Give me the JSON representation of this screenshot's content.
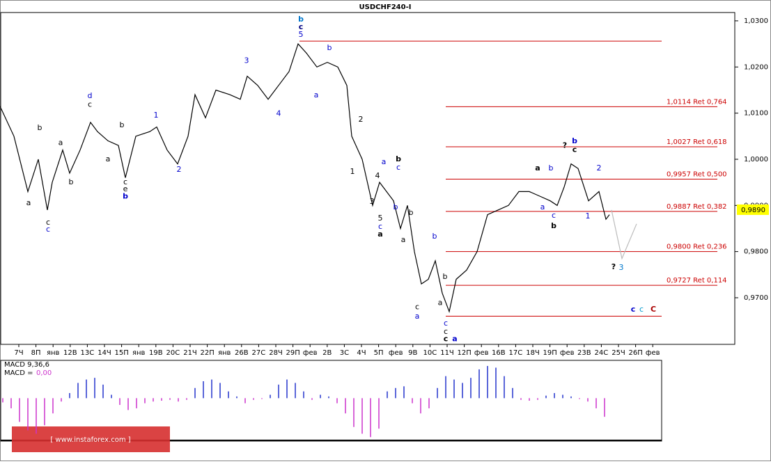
{
  "chart_data": {
    "type": "line",
    "title": "USDCHF240-I",
    "categories": [
      "7Ч",
      "8П",
      "янв",
      "12В",
      "13С",
      "14Ч",
      "15П",
      "янв",
      "19В",
      "20С",
      "21Ч",
      "22П",
      "янв",
      "26В",
      "27С",
      "28Ч",
      "29П",
      "фев",
      "2В",
      "3С",
      "4Ч",
      "5П",
      "фев",
      "9В",
      "10С",
      "11Ч",
      "12П",
      "фев",
      "16В",
      "17С",
      "18Ч",
      "19П",
      "фев",
      "23В",
      "24С",
      "25Ч",
      "26П",
      "фев"
    ],
    "xlim": [
      0,
      237.5
    ],
    "ylim": [
      0.9599,
      1.0318
    ],
    "yticks": [
      {
        "value": 1.03,
        "label": "1,0300"
      },
      {
        "value": 1.02,
        "label": "1,0200"
      },
      {
        "value": 1.01,
        "label": "1,0100"
      },
      {
        "value": 1.0,
        "label": "1,0000"
      },
      {
        "value": 0.99,
        "label": "0,9900"
      },
      {
        "value": 0.98,
        "label": "0,9800"
      },
      {
        "value": 0.97,
        "label": "0,9700"
      }
    ],
    "series": [
      {
        "color": "#000000",
        "x": [
          0,
          5,
          10,
          13.75,
          17,
          18.75,
          22.5,
          25,
          28.75,
          32.5,
          35,
          38.75,
          42.5,
          45,
          48.75,
          53.75,
          56.25,
          60,
          63.75,
          67.5,
          70,
          73.75,
          77.5,
          82.5,
          86.25,
          88.75,
          92.5,
          96.25,
          100,
          103.75,
          107,
          110,
          113.75,
          117.5,
          121.25,
          124.5,
          126.25,
          130,
          133.75,
          136.25,
          138.75,
          141.25,
          143.75,
          146.25,
          148.75,
          151.25,
          153.75,
          156.25,
          158.75,
          161.25,
          163.75,
          167.5,
          171.25,
          175,
          178.75,
          182.5,
          186.25,
          190,
          193.75,
          197.5,
          200,
          202.5,
          205,
          207.5,
          211.25,
          215,
          217.5,
          218.75
        ],
        "values": [
          1.0115,
          1.005,
          0.993,
          1.0,
          0.989,
          0.995,
          1.002,
          0.997,
          1.002,
          1.008,
          1.006,
          1.004,
          1.003,
          0.996,
          1.005,
          1.006,
          1.007,
          1.002,
          0.999,
          1.005,
          1.014,
          1.009,
          1.015,
          1.014,
          1.013,
          1.018,
          1.016,
          1.013,
          1.016,
          1.019,
          1.025,
          1.023,
          1.02,
          1.021,
          1.02,
          1.016,
          1.005,
          1.0,
          0.99,
          0.995,
          0.993,
          0.991,
          0.985,
          0.99,
          0.98,
          0.973,
          0.974,
          0.978,
          0.971,
          0.967,
          0.974,
          0.976,
          0.98,
          0.988,
          0.989,
          0.99,
          0.993,
          0.993,
          0.992,
          0.991,
          0.99,
          0.994,
          0.999,
          0.998,
          0.991,
          0.993,
          0.987,
          0.988
        ]
      },
      {
        "color": "#bbbbbb",
        "x": [
          219.5,
          223.25,
          228.5
        ],
        "values": [
          0.989,
          0.9785,
          0.986
        ]
      }
    ],
    "current_price": {
      "value": 0.989,
      "label": "0,9890"
    },
    "hlines": [
      {
        "value": 1.0256,
        "start": 107.5
      },
      {
        "value": 1.0114,
        "start": 160,
        "label": "1,0114 Ret 0,764"
      },
      {
        "value": 1.0027,
        "start": 160,
        "label": "1,0027 Ret 0,618"
      },
      {
        "value": 0.9957,
        "start": 160,
        "label": "0,9957 Ret 0,500"
      },
      {
        "value": 0.9887,
        "start": 160,
        "label": "0,9887 Ret 0,382"
      },
      {
        "value": 0.98,
        "start": 160,
        "label": "0,9800 Ret 0,236"
      },
      {
        "value": 0.9727,
        "start": 160,
        "label": "0,9727 Ret 0,114"
      },
      {
        "value": 0.966,
        "start": 160
      }
    ],
    "hline_color": "#cc0000",
    "annotations": [
      {
        "text": "b",
        "x": 108,
        "y": 1.0303,
        "color": "#0077cc",
        "bold": true
      },
      {
        "text": "c",
        "x": 108,
        "y": 1.0286,
        "color": "#000080",
        "bold": true
      },
      {
        "text": "5",
        "x": 108,
        "y": 1.027,
        "color": "#0000cc",
        "bold": false
      },
      {
        "text": "b",
        "x": 118.25,
        "y": 1.0241,
        "color": "#0000cc",
        "bold": false
      },
      {
        "text": "a",
        "x": 113.5,
        "y": 1.0139,
        "color": "#0000cc",
        "bold": false
      },
      {
        "text": "3",
        "x": 88.5,
        "y": 1.0213,
        "color": "#0000cc",
        "bold": false
      },
      {
        "text": "4",
        "x": 100,
        "y": 1.0099,
        "color": "#0000cc",
        "bold": false
      },
      {
        "text": "d",
        "x": 32.25,
        "y": 1.0137,
        "color": "#0000cc",
        "bold": false
      },
      {
        "text": "c",
        "x": 32.25,
        "y": 1.0118,
        "color": "#000000",
        "bold": false
      },
      {
        "text": "b",
        "x": 14.25,
        "y": 1.0068,
        "color": "#000000",
        "bold": false
      },
      {
        "text": "a",
        "x": 21.75,
        "y": 1.0035,
        "color": "#000000",
        "bold": false
      },
      {
        "text": "1",
        "x": 56,
        "y": 1.0095,
        "color": "#0000cc",
        "bold": false
      },
      {
        "text": "b",
        "x": 43.75,
        "y": 1.0074,
        "color": "#000000",
        "bold": false
      },
      {
        "text": "a",
        "x": 38.75,
        "y": 1.0,
        "color": "#000000",
        "bold": false
      },
      {
        "text": "c",
        "x": 45,
        "y": 0.995,
        "color": "#000000",
        "bold": false
      },
      {
        "text": "e",
        "x": 45,
        "y": 0.9935,
        "color": "#000000",
        "bold": false
      },
      {
        "text": "b",
        "x": 45,
        "y": 0.9919,
        "color": "#0000cc",
        "bold": true
      },
      {
        "text": "b",
        "x": 25.5,
        "y": 0.995,
        "color": "#000000",
        "bold": false
      },
      {
        "text": "a",
        "x": 10.25,
        "y": 0.9905,
        "color": "#000000",
        "bold": false
      },
      {
        "text": "c",
        "x": 17.25,
        "y": 0.9863,
        "color": "#000000",
        "bold": false
      },
      {
        "text": "c",
        "x": 17.25,
        "y": 0.9848,
        "color": "#0000cc",
        "bold": false
      },
      {
        "text": "2",
        "x": 64.25,
        "y": 0.9977,
        "color": "#0000cc",
        "bold": false
      },
      {
        "text": "2",
        "x": 129.5,
        "y": 1.0086,
        "color": "#000000",
        "bold": false
      },
      {
        "text": "1",
        "x": 126.5,
        "y": 0.9973,
        "color": "#000000",
        "bold": false
      },
      {
        "text": "b",
        "x": 143,
        "y": 1.0,
        "color": "#000000",
        "bold": true
      },
      {
        "text": "c",
        "x": 143,
        "y": 0.9982,
        "color": "#0000cc",
        "bold": false
      },
      {
        "text": "a",
        "x": 137.75,
        "y": 0.9994,
        "color": "#0000cc",
        "bold": false
      },
      {
        "text": "4",
        "x": 135.5,
        "y": 0.9964,
        "color": "#000000",
        "bold": false
      },
      {
        "text": "3",
        "x": 133.5,
        "y": 0.9908,
        "color": "#000000",
        "bold": false
      },
      {
        "text": "5",
        "x": 136.5,
        "y": 0.9872,
        "color": "#000000",
        "bold": false
      },
      {
        "text": "c",
        "x": 136.5,
        "y": 0.9854,
        "color": "#0000cc",
        "bold": false
      },
      {
        "text": "a",
        "x": 136.5,
        "y": 0.9837,
        "color": "#000000",
        "bold": true
      },
      {
        "text": "b",
        "x": 142,
        "y": 0.9896,
        "color": "#0000cc",
        "bold": false
      },
      {
        "text": "b",
        "x": 147.5,
        "y": 0.9884,
        "color": "#000000",
        "bold": false
      },
      {
        "text": "a",
        "x": 144.75,
        "y": 0.9825,
        "color": "#000000",
        "bold": false
      },
      {
        "text": "b",
        "x": 156,
        "y": 0.9833,
        "color": "#0000cc",
        "bold": false
      },
      {
        "text": "c",
        "x": 149.75,
        "y": 0.968,
        "color": "#000000",
        "bold": false
      },
      {
        "text": "a",
        "x": 149.75,
        "y": 0.9659,
        "color": "#0000cc",
        "bold": false
      },
      {
        "text": "b",
        "x": 159.75,
        "y": 0.9745,
        "color": "#000000",
        "bold": false
      },
      {
        "text": "a",
        "x": 158,
        "y": 0.9689,
        "color": "#000000",
        "bold": false
      },
      {
        "text": "c",
        "x": 160,
        "y": 0.9644,
        "color": "#0000cc",
        "bold": false
      },
      {
        "text": "c",
        "x": 160,
        "y": 0.9626,
        "color": "#000000",
        "bold": false
      },
      {
        "text": "c",
        "x": 160,
        "y": 0.961,
        "color": "#000000",
        "bold": true
      },
      {
        "text": "a",
        "x": 163.25,
        "y": 0.961,
        "color": "#0000cc",
        "bold": true
      },
      {
        "text": "a",
        "x": 193,
        "y": 0.998,
        "color": "#000000",
        "bold": true
      },
      {
        "text": "b",
        "x": 197.75,
        "y": 0.998,
        "color": "#0000cc",
        "bold": false
      },
      {
        "text": "a",
        "x": 194.75,
        "y": 0.9896,
        "color": "#0000cc",
        "bold": false
      },
      {
        "text": "c",
        "x": 198.75,
        "y": 0.9878,
        "color": "#0000cc",
        "bold": false
      },
      {
        "text": "b",
        "x": 198.75,
        "y": 0.9855,
        "color": "#000000",
        "bold": true
      },
      {
        "text": "?",
        "x": 202.75,
        "y": 1.0029,
        "color": "#000000",
        "bold": true
      },
      {
        "text": "b",
        "x": 206.25,
        "y": 1.0039,
        "color": "#0000cc",
        "bold": true
      },
      {
        "text": "c",
        "x": 206.25,
        "y": 1.002,
        "color": "#000000",
        "bold": true
      },
      {
        "text": "2",
        "x": 215,
        "y": 0.998,
        "color": "#0000cc",
        "bold": false
      },
      {
        "text": "1",
        "x": 211,
        "y": 0.9876,
        "color": "#0000cc",
        "bold": false
      },
      {
        "text": "?",
        "x": 220.25,
        "y": 0.9766,
        "color": "#000000",
        "bold": true
      },
      {
        "text": "3",
        "x": 223,
        "y": 0.9765,
        "color": "#0077cc",
        "bold": false
      },
      {
        "text": "c",
        "x": 227.25,
        "y": 0.9674,
        "color": "#0000cc",
        "bold": true
      },
      {
        "text": "c",
        "x": 230.25,
        "y": 0.9674,
        "color": "#0099cc",
        "bold": false
      },
      {
        "text": "C",
        "x": 234.5,
        "y": 0.9674,
        "color": "#aa0000",
        "bold": true
      }
    ],
    "macd": {
      "title": "MACD 9,36,6",
      "label": "MACD =",
      "value_label": "0,00",
      "ylim": [
        -0.0049,
        0.0043
      ],
      "pos_color": "#2233cc",
      "neg_color": "#cc33cc",
      "x": [
        1,
        4,
        7,
        10,
        13,
        16,
        19,
        22,
        25,
        28,
        31,
        34,
        37,
        40,
        43,
        46,
        49,
        52,
        55,
        58,
        61,
        64,
        67,
        70,
        73,
        76,
        79,
        82,
        85,
        88,
        91,
        94,
        97,
        100,
        103,
        106,
        109,
        112,
        115,
        118,
        121,
        124,
        127,
        130,
        133,
        136,
        139,
        142,
        145,
        148,
        151,
        154,
        157,
        160,
        163,
        166,
        169,
        172,
        175,
        178,
        181,
        184,
        187,
        190,
        193,
        196,
        199,
        202,
        205,
        208,
        211,
        214,
        217
      ],
      "values": [
        -0.0005,
        -0.0012,
        -0.0028,
        -0.0038,
        -0.0042,
        -0.0032,
        -0.0018,
        -0.0004,
        0.0006,
        0.0018,
        0.0022,
        0.0024,
        0.0016,
        0.0004,
        -0.0008,
        -0.0014,
        -0.0012,
        -0.0006,
        -0.0004,
        -0.0003,
        -0.0002,
        -0.0004,
        -0.0002,
        0.0012,
        0.002,
        0.0022,
        0.0018,
        0.0008,
        0.0002,
        -0.0006,
        -0.0002,
        -0.0001,
        0.0004,
        0.0016,
        0.0022,
        0.0018,
        0.0008,
        -0.0002,
        0.0004,
        0.0002,
        -0.0006,
        -0.0018,
        -0.0034,
        -0.0042,
        -0.0046,
        -0.0036,
        0.0008,
        0.0012,
        0.0014,
        -0.0006,
        -0.0018,
        -0.0012,
        0.0012,
        0.0026,
        0.0022,
        0.0018,
        0.0024,
        0.0034,
        0.0038,
        0.0036,
        0.0026,
        0.0012,
        -0.0002,
        -0.0003,
        -0.0002,
        0.0003,
        0.0006,
        0.0004,
        0.0002,
        -0.0001,
        -0.0004,
        -0.0012,
        -0.0022
      ]
    },
    "watermark": "[ www.instaforex.com ]"
  }
}
